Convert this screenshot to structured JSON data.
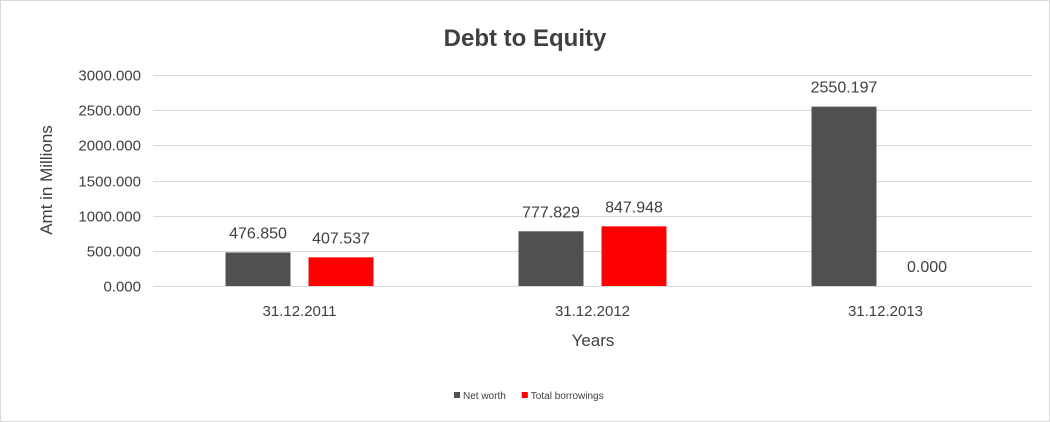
{
  "chart_data": {
    "type": "bar",
    "title": "Debt to Equity",
    "xlabel": "Years",
    "ylabel": "Amt in Millions",
    "categories": [
      "31.12.2011",
      "31.12.2012",
      "31.12.2013"
    ],
    "series": [
      {
        "name": "Net worth",
        "color": "#505050",
        "values": [
          476.85,
          777.829,
          2550.197
        ],
        "labels": [
          "476.850",
          "777.829",
          "2550.197"
        ]
      },
      {
        "name": "Total borrowings",
        "color": "#ff0000",
        "values": [
          407.537,
          847.948,
          0.0
        ],
        "labels": [
          "407.537",
          "847.948",
          "0.000"
        ]
      }
    ],
    "ylim": [
      0,
      3000
    ],
    "yticks": [
      {
        "value": 0,
        "label": "0.000"
      },
      {
        "value": 500,
        "label": "500.000"
      },
      {
        "value": 1000,
        "label": "1000.000"
      },
      {
        "value": 1500,
        "label": "1500.000"
      },
      {
        "value": 2000,
        "label": "2000.000"
      },
      {
        "value": 2500,
        "label": "2500.000"
      },
      {
        "value": 3000,
        "label": "3000.000"
      }
    ],
    "grid": true,
    "legend_position": "bottom"
  }
}
